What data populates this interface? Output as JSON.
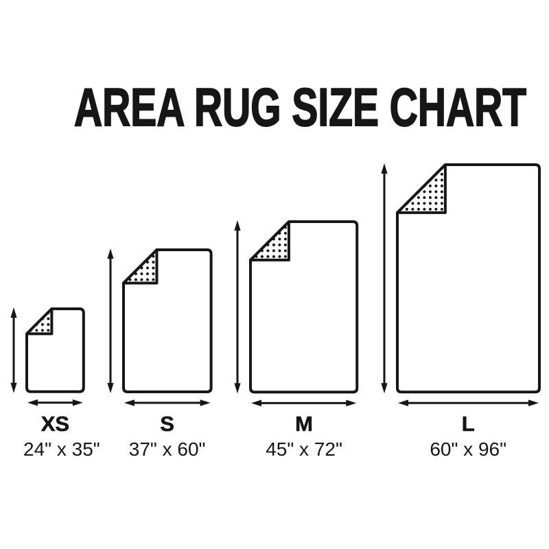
{
  "title": "AREA RUG SIZE CHART",
  "colors": {
    "ink": "#161616",
    "background": "#ffffff"
  },
  "chart_data": {
    "type": "diagram",
    "subtype": "size-comparison",
    "unit": "inches",
    "items": [
      {
        "label": "XS",
        "width_in": 24,
        "height_in": 35,
        "dimensions": "24\" x 35\""
      },
      {
        "label": "S",
        "width_in": 37,
        "height_in": 60,
        "dimensions": "37\" x 60\""
      },
      {
        "label": "M",
        "width_in": 45,
        "height_in": 72,
        "dimensions": "45\" x 72\""
      },
      {
        "label": "L",
        "width_in": 60,
        "height_in": 96,
        "dimensions": "60\" x 96\""
      }
    ]
  }
}
